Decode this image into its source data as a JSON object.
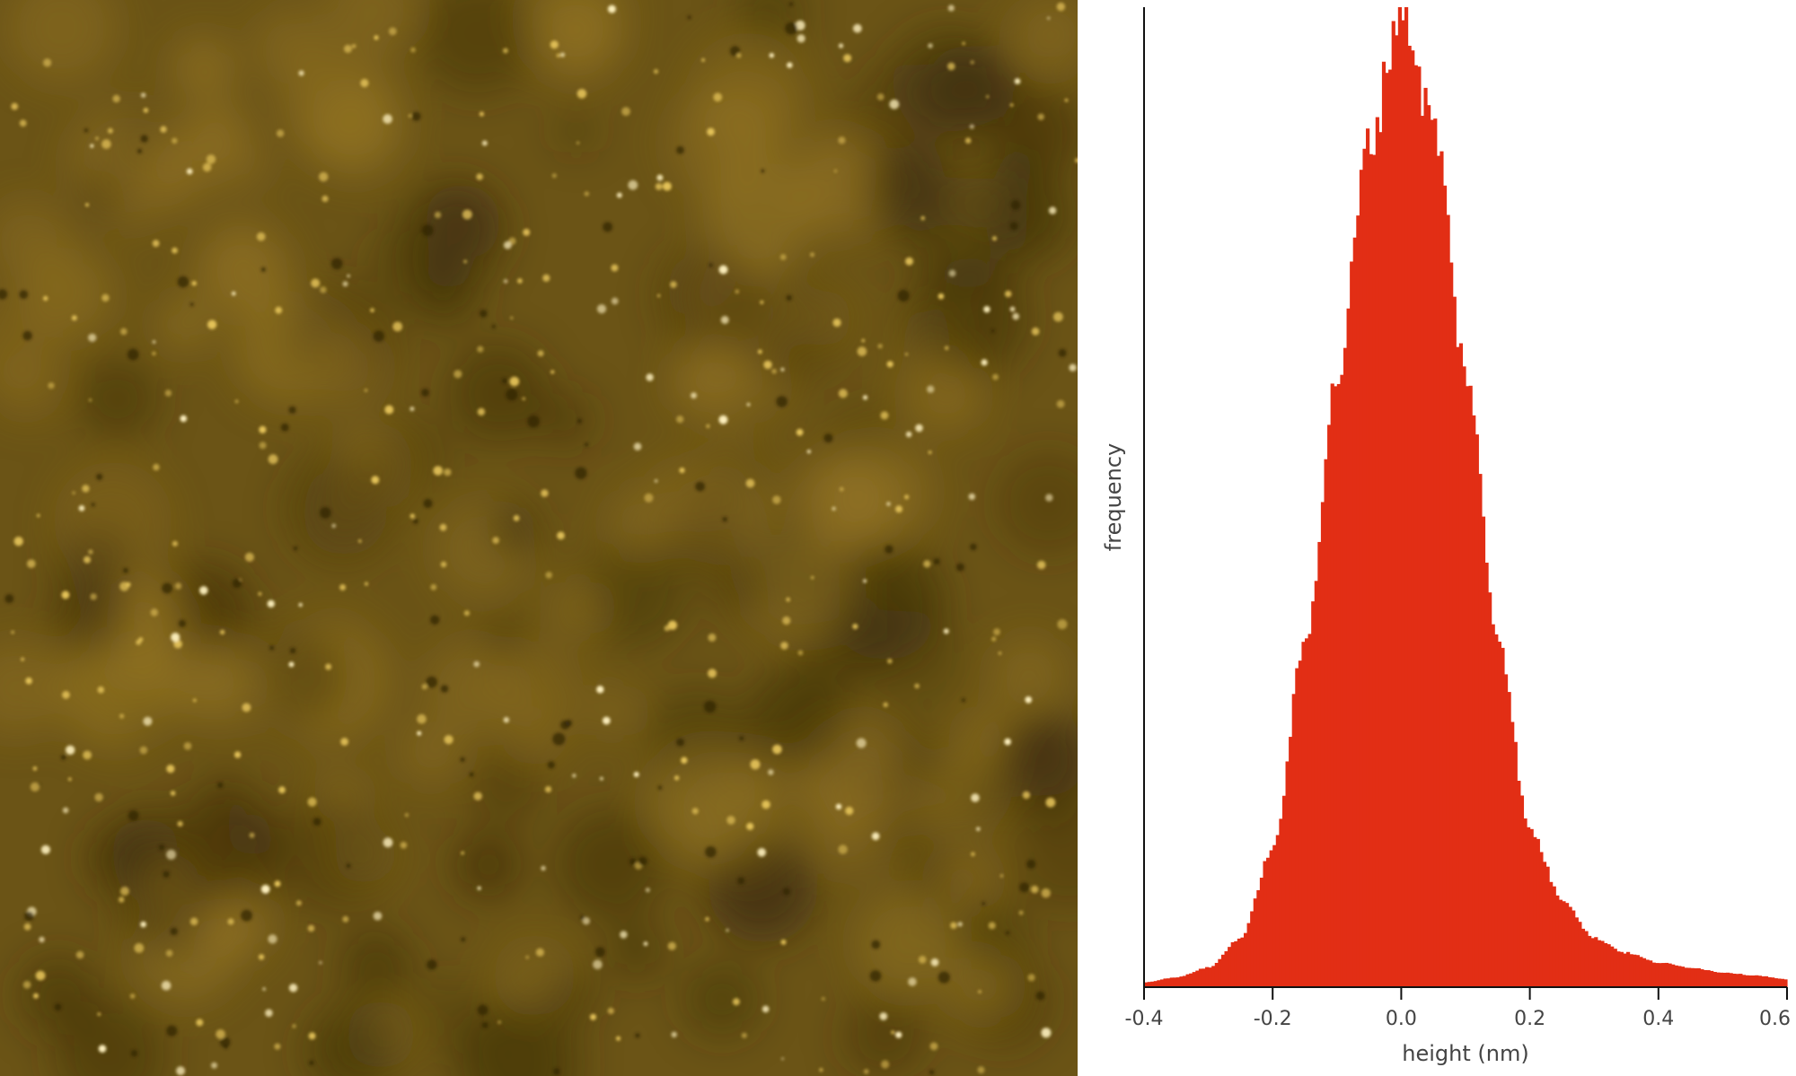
{
  "colors": {
    "afm_base": "#6b5416",
    "afm_dark": "#2e2208",
    "afm_bright": "#fff2c0",
    "histogram_fill": "#e22e15",
    "axis": "#111111"
  },
  "chart_data": [
    {
      "type": "heatmap",
      "description_kind": "AFM topography image",
      "colormap": "dark brown to bright yellow",
      "title": "",
      "xlabel": "",
      "ylabel": ""
    },
    {
      "type": "bar",
      "title": "",
      "xlabel": "height (nm)",
      "ylabel": "frequency",
      "xlim": [
        -0.4,
        0.6
      ],
      "x_ticks": [
        -0.4,
        -0.2,
        0.0,
        0.2,
        0.4,
        0.6
      ],
      "x_tick_labels": [
        "-0.4",
        "-0.2",
        "0.0",
        "0.2",
        "0.4",
        "0.6"
      ],
      "y_ticks_shown": false,
      "grid": false,
      "legend": "none",
      "bin_width": 0.005,
      "relative_frequency_profile": {
        "x": [
          -0.4,
          -0.35,
          -0.3,
          -0.25,
          -0.2,
          -0.15,
          -0.1,
          -0.05,
          0.0,
          0.05,
          0.1,
          0.15,
          0.2,
          0.25,
          0.3,
          0.35,
          0.4,
          0.45,
          0.5,
          0.55,
          0.6
        ],
        "y": [
          0.005,
          0.01,
          0.02,
          0.05,
          0.14,
          0.35,
          0.62,
          0.86,
          1.0,
          0.88,
          0.63,
          0.36,
          0.16,
          0.09,
          0.05,
          0.035,
          0.025,
          0.02,
          0.015,
          0.012,
          0.008
        ]
      }
    }
  ]
}
